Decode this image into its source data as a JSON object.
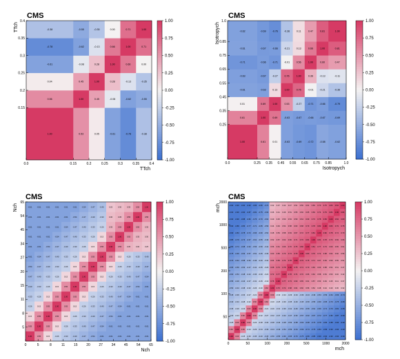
{
  "colors": {
    "low": "#3b6fd0",
    "mid": "#f4f2f2",
    "high": "#d63a64"
  },
  "chart_data": [
    {
      "type": "heatmap",
      "label": "CMS",
      "xlabel": "T_T^{ch}",
      "ylabel": "T_T^{ch}",
      "x_edges": [
        0,
        0.15,
        0.2,
        0.25,
        0.3,
        0.35,
        0.4
      ],
      "y_edges": [
        0,
        0.15,
        0.2,
        0.25,
        0.3,
        0.35,
        0.4
      ],
      "x_tick_labels": [
        "0.0",
        "0.15",
        "0.2",
        "0.25",
        "0.3",
        "0.35",
        "0.4"
      ],
      "y_tick_labels": [
        "0.15",
        "0.2",
        "0.25",
        "0.3",
        "0.35",
        "0.4"
      ],
      "colorbar_ticks": [
        "1.00",
        "0.75",
        "0.50",
        "0.25",
        "0.00",
        "-0.25",
        "-0.50",
        "-0.75",
        "-1.00"
      ],
      "z": [
        [
          1.0,
          0.53,
          0.05,
          -0.61,
          -0.78,
          -0.38
        ],
        [
          0.56,
          1.0,
          0.45,
          -0.08,
          -0.62,
          -0.55
        ],
        [
          0.04,
          0.45,
          1.0,
          0.28,
          -0.13,
          -0.35
        ],
        [
          -0.61,
          -0.08,
          0.28,
          1.0,
          0.66,
          0.0
        ],
        [
          -0.78,
          -0.62,
          -0.13,
          0.66,
          1.0,
          0.71
        ],
        [
          -0.38,
          -0.55,
          -0.35,
          0.0,
          0.71,
          1.0
        ]
      ]
    },
    {
      "type": "heatmap",
      "label": "CMS",
      "xlabel": "Isotropy^{ch}",
      "ylabel": "Isotropy^{ch}",
      "x_edges": [
        0,
        0.25,
        0.35,
        0.45,
        0.55,
        0.65,
        0.75,
        0.85,
        1.0
      ],
      "y_edges": [
        0,
        0.25,
        0.35,
        0.45,
        0.55,
        0.65,
        0.75,
        0.85,
        1.0
      ],
      "x_tick_labels": [
        "0.0",
        "0.25",
        "0.35",
        "0.45",
        "0.55",
        "0.65",
        "0.75",
        "0.85",
        "1.0"
      ],
      "y_tick_labels": [
        "0.25",
        "0.35",
        "0.45",
        "0.55",
        "0.65",
        "0.75",
        "0.85",
        "1.0"
      ],
      "colorbar_ticks": [
        "1.00",
        "0.75",
        "0.50",
        "0.25",
        "0.00",
        "-0.25",
        "-0.50",
        "-0.75",
        "-1.00"
      ],
      "z": [
        [
          1.0,
          0.61,
          0.01,
          -0.63,
          -0.69,
          -0.72,
          -0.58,
          -0.62
        ],
        [
          0.61,
          1.0,
          0.69,
          -0.63,
          -0.67,
          -0.66,
          -0.67,
          -0.69
        ],
        [
          0.01,
          0.69,
          1.0,
          0.53,
          -0.27,
          -0.71,
          -0.66,
          -0.79
        ],
        [
          -0.61,
          -0.63,
          0.13,
          1.0,
          0.76,
          -0.01,
          -0.21,
          -0.36
        ],
        [
          -0.63,
          -0.67,
          -0.27,
          0.76,
          1.0,
          0.36,
          -0.13,
          -0.11
        ],
        [
          -0.71,
          -0.66,
          -0.71,
          -0.01,
          0.56,
          1.0,
          0.6,
          0.47
        ],
        [
          -0.61,
          -0.67,
          -0.66,
          -0.21,
          0.13,
          0.66,
          1.0,
          0.81
        ],
        [
          -0.62,
          -0.69,
          -0.76,
          -0.36,
          0.11,
          0.47,
          0.81,
          1.0
        ]
      ]
    },
    {
      "type": "heatmap",
      "label": "CMS",
      "xlabel": "N_{ch}",
      "ylabel": "N_{ch}",
      "x_tick_labels": [
        "0",
        "5",
        "8",
        "11",
        "15",
        "20",
        "27",
        "34",
        "45",
        "54",
        "65"
      ],
      "y_tick_labels": [
        "5",
        "8",
        "11",
        "15",
        "20",
        "27",
        "34",
        "45",
        "54",
        "65"
      ],
      "bins": 14,
      "colorbar_ticks": [
        "1.00",
        "0.75",
        "0.50",
        "0.25",
        "0.00",
        "-0.25",
        "-0.50",
        "-0.75",
        "-1.00"
      ],
      "z_model": "correlation decreases with bin distance, local positive band along the diagonal"
    },
    {
      "type": "heatmap",
      "label": "CMS",
      "xlabel": "m_{ch}",
      "ylabel": "m_{ch}",
      "x_tick_labels": [
        "0",
        "50",
        "100",
        "200",
        "500",
        "1000",
        "2000"
      ],
      "y_tick_labels": [
        "50",
        "100",
        "200",
        "500",
        "1000",
        "2000"
      ],
      "bins": 20,
      "colorbar_ticks": [
        "1.00",
        "0.75",
        "0.50",
        "0.25",
        "0.00",
        "-0.25",
        "-0.50",
        "-0.75",
        "-1.00"
      ],
      "z_model": "high-mass bins positively correlated, low-mass bins anticorrelated"
    }
  ]
}
